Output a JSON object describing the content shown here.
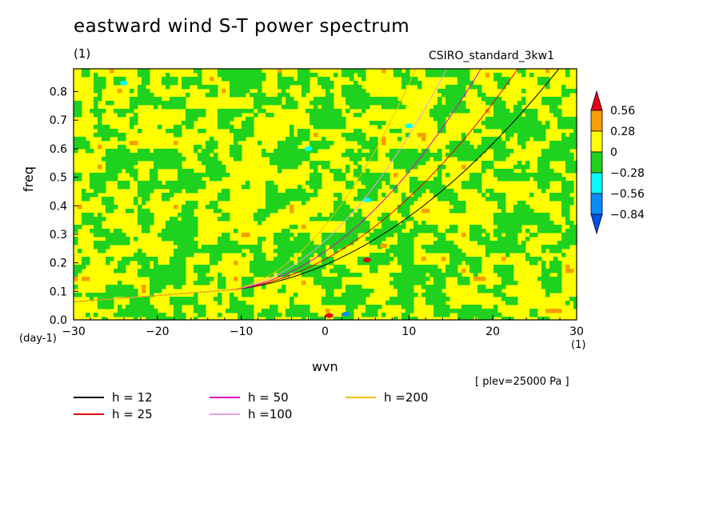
{
  "title": "eastward wind S-T power spectrum",
  "unit_note": "(1)",
  "model_label": "CSIRO_standard_3kw1",
  "plev_note": "[ plev=25000 Pa ]",
  "colorbar": {
    "labels": [
      "0.56",
      "0.28",
      "0",
      "−0.28",
      "−0.56",
      "−0.84"
    ],
    "colors": [
      "#e8001a",
      "#f5a000",
      "#ffff00",
      "#1ed21e",
      "#00ffff",
      "#0a8cff",
      "#0050e6"
    ]
  },
  "chart_data": {
    "type": "heatmap",
    "title": "eastward wind S-T power spectrum",
    "xlabel": "wvn",
    "ylabel": "freq",
    "xunit": "(1)",
    "yunit": "(day-1)",
    "xlim": [
      -30,
      30
    ],
    "ylim": [
      0,
      0.88
    ],
    "xticks": [
      -30,
      -20,
      -10,
      0,
      10,
      20,
      30
    ],
    "yticks": [
      0.0,
      0.1,
      0.2,
      0.3,
      0.4,
      0.5,
      0.6,
      0.7,
      0.8
    ],
    "xtick_labels": [
      "−30",
      "−20",
      "−10",
      "0",
      "10",
      "20",
      "30"
    ],
    "ytick_labels": [
      "0.0",
      "0.1",
      "0.2",
      "0.3",
      "0.4",
      "0.5",
      "0.6",
      "0.7",
      "0.8"
    ],
    "levels": [
      -0.84,
      -0.56,
      -0.28,
      0,
      0.28,
      0.56
    ],
    "series": [
      {
        "name": "h = 12",
        "label": "h = 12",
        "color": "#000000",
        "h": 12
      },
      {
        "name": "h = 25",
        "label": "h = 25",
        "color": "#e00000",
        "h": 25
      },
      {
        "name": "h = 50",
        "label": "h = 50",
        "color": "#e000c0",
        "h": 50
      },
      {
        "name": "h =100",
        "label": "h =100",
        "color": "#e8a0e8",
        "h": 100
      },
      {
        "name": "h =200",
        "label": "h =200",
        "color": "#f0c000",
        "h": 200
      }
    ]
  }
}
